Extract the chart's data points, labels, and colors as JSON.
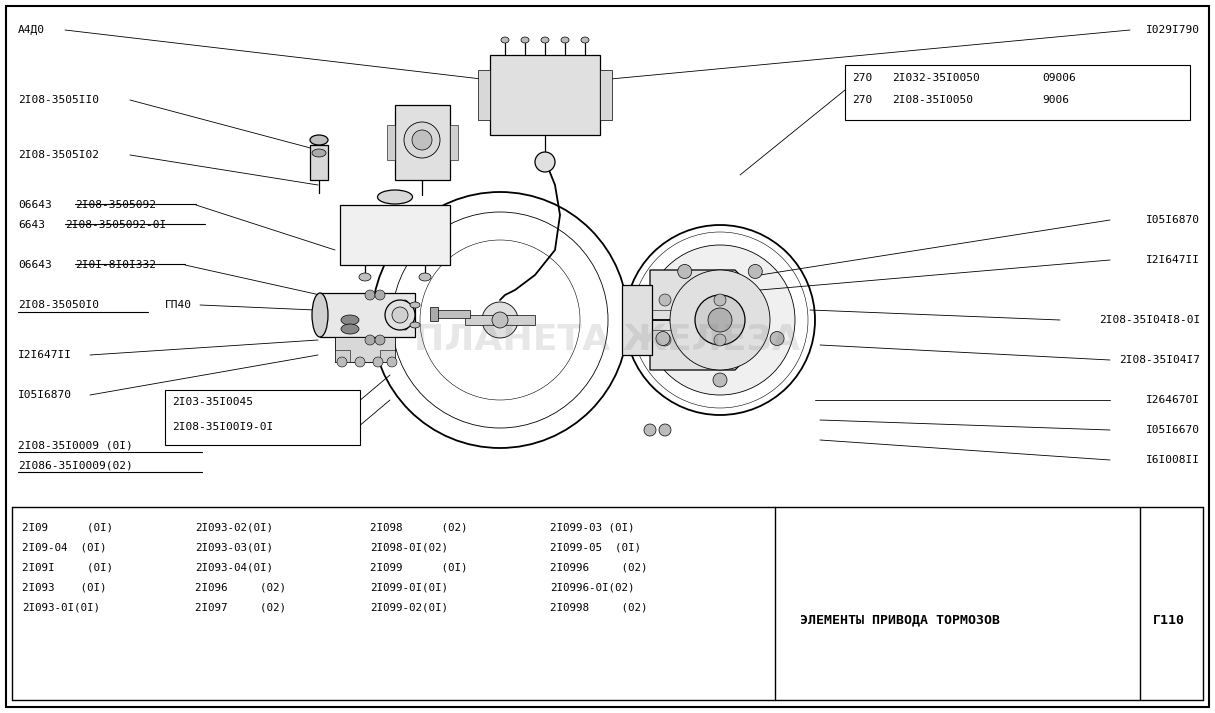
{
  "bg_color": "#ffffff",
  "title": "ЭЛЕМЕНТЫ ПРИВОДА ТОРМОЗОВ",
  "page_code": "Г110",
  "bottom_parts": [
    [
      "2I09      (0I)  2I093-02(0I)  2I098      (02)  2I099-03 (0I)"
    ],
    [
      "2I09-04  (0I)  2I093-03(0I)  2I098-0I(02)  2I099-05  (0I)"
    ],
    [
      "2I09I     (0I)  2I093-04(0I)  2I099      (0I)  2I0996     (02)"
    ],
    [
      "2I093    (0I)  2I096     (02)  2I099-0I(0I)  2I0996-0I(02)"
    ],
    [
      "2I093-0I(0I)  2I097     (02)  2I099-02(0I)  2I0998     (02)"
    ]
  ],
  "col1": [
    "2I09      (0I)",
    "2I09-04  (0I)",
    "2I09I     (0I)",
    "2I093    (0I)",
    "2I093-0I(0I)"
  ],
  "col2": [
    "2I093-02(0I)",
    "2I093-03(0I)",
    "2I093-04(0I)",
    "2I096     (02)",
    "2I097     (02)"
  ],
  "col3": [
    "2I098      (02)",
    "2I098-0I(02)",
    "2I099      (0I)",
    "2I099-0I(0I)",
    "2I099-02(0I)"
  ],
  "col4": [
    "2I099-03 (0I)",
    "2I099-05  (0I)",
    "2I0996     (02)",
    "2I0996-0I(02)",
    "2I0998     (02)"
  ]
}
